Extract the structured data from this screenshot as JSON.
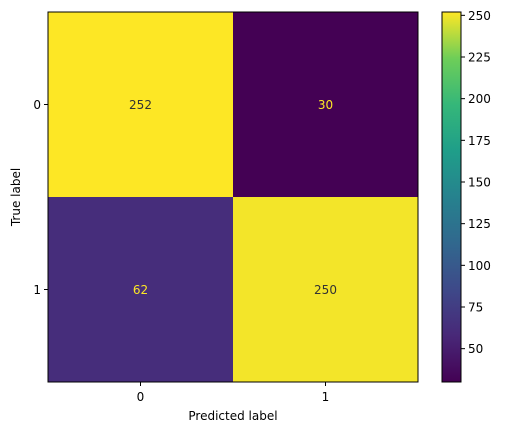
{
  "chart_data": {
    "type": "heatmap",
    "title": "",
    "xlabel": "Predicted label",
    "ylabel": "True label",
    "x_categories": [
      "0",
      "1"
    ],
    "y_categories": [
      "0",
      "1"
    ],
    "values": [
      [
        252,
        30
      ],
      [
        62,
        250
      ]
    ],
    "colormap": "viridis",
    "colorbar": {
      "range": [
        30,
        252
      ],
      "ticks": [
        50,
        75,
        100,
        125,
        150,
        175,
        200,
        225,
        250
      ]
    },
    "cell_label_colors": {
      "light_cell": "#333333",
      "dark_cell": "#fde725"
    },
    "grid": false
  }
}
